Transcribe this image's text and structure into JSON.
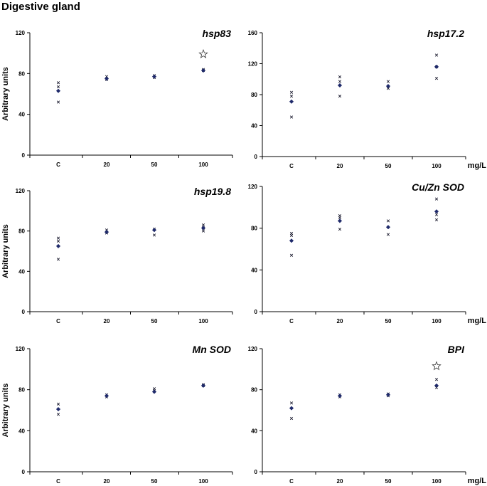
{
  "page_title": "Digestive gland",
  "chart_data": [
    {
      "type": "scatter",
      "title": "hsp83",
      "ylabel": "Arbitrary units",
      "xlabel": "",
      "categories": [
        "C",
        "20",
        "50",
        "100"
      ],
      "ylim": [
        0,
        120
      ],
      "yticks": [
        0,
        40,
        80,
        120
      ],
      "mean": [
        63,
        75,
        77,
        83
      ],
      "replicates": [
        [
          71,
          67,
          52
        ],
        [
          77,
          74
        ],
        [
          78,
          76
        ],
        [
          84,
          83
        ]
      ],
      "significance": [
        null,
        null,
        null,
        99
      ]
    },
    {
      "type": "scatter",
      "title": "hsp17.2",
      "ylabel": "",
      "xlabel": "mg/L",
      "categories": [
        "C",
        "20",
        "50",
        "100"
      ],
      "ylim": [
        0,
        160
      ],
      "yticks": [
        0,
        40,
        80,
        120,
        160
      ],
      "mean": [
        71,
        92,
        91,
        116
      ],
      "replicates": [
        [
          83,
          78,
          51
        ],
        [
          103,
          97,
          78
        ],
        [
          97,
          88
        ],
        [
          131,
          116,
          101
        ]
      ],
      "significance": [
        null,
        null,
        null,
        null
      ]
    },
    {
      "type": "scatter",
      "title": "hsp19.8",
      "ylabel": "Arbitrary units",
      "xlabel": "",
      "categories": [
        "C",
        "20",
        "50",
        "100"
      ],
      "ylim": [
        0,
        120
      ],
      "yticks": [
        0,
        40,
        80,
        120
      ],
      "mean": [
        65,
        79,
        81,
        83
      ],
      "replicates": [
        [
          73,
          70,
          52
        ],
        [
          81,
          78
        ],
        [
          82,
          76
        ],
        [
          86,
          83,
          80
        ]
      ],
      "significance": [
        null,
        null,
        null,
        null
      ]
    },
    {
      "type": "scatter",
      "title": "Cu/Zn SOD",
      "ylabel": "",
      "xlabel": "mg/L",
      "categories": [
        "C",
        "20",
        "50",
        "100"
      ],
      "ylim": [
        0,
        120
      ],
      "yticks": [
        0,
        40,
        80,
        120
      ],
      "mean": [
        68,
        87,
        81,
        96
      ],
      "replicates": [
        [
          75,
          73,
          54
        ],
        [
          92,
          90,
          79
        ],
        [
          87,
          74
        ],
        [
          108,
          93,
          88
        ]
      ],
      "significance": [
        null,
        null,
        null,
        null
      ]
    },
    {
      "type": "scatter",
      "title": "Mn SOD",
      "ylabel": "Arbitrary units",
      "xlabel": "",
      "categories": [
        "C",
        "20",
        "50",
        "100"
      ],
      "ylim": [
        0,
        120
      ],
      "yticks": [
        0,
        40,
        80,
        120
      ],
      "mean": [
        61,
        74,
        78,
        84
      ],
      "replicates": [
        [
          66,
          56
        ],
        [
          75,
          73
        ],
        [
          81,
          79
        ],
        [
          85,
          84
        ]
      ],
      "significance": [
        null,
        null,
        null,
        null
      ]
    },
    {
      "type": "scatter",
      "title": "BPI",
      "ylabel": "",
      "xlabel": "mg/L",
      "categories": [
        "C",
        "20",
        "50",
        "100"
      ],
      "ylim": [
        0,
        120
      ],
      "yticks": [
        0,
        40,
        80,
        120
      ],
      "mean": [
        62,
        74,
        75,
        84
      ],
      "replicates": [
        [
          67,
          52
        ],
        [
          75,
          73
        ],
        [
          76,
          74
        ],
        [
          90,
          82
        ]
      ],
      "significance": [
        null,
        null,
        null,
        103
      ]
    }
  ]
}
